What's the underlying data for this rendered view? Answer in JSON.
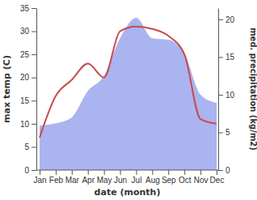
{
  "chart_data": {
    "type": "line",
    "x_label": "date (month)",
    "y_label": "max temp (C)",
    "y2_label": "med. precipitation (kg/m2)",
    "categories": [
      "Jan",
      "Feb",
      "Mar",
      "Apr",
      "May",
      "Jun",
      "Jul",
      "Aug",
      "Sep",
      "Oct",
      "Nov",
      "Dec"
    ],
    "series": [
      {
        "name": "med. precipitation",
        "type": "area",
        "axis": "y2",
        "color": "#aab4f0",
        "values": [
          5.9,
          6.2,
          7.0,
          10.5,
          12.5,
          17.5,
          20.2,
          17.5,
          17.3,
          15.5,
          10.0,
          8.9
        ]
      },
      {
        "name": "max temp",
        "type": "line",
        "color": "#c84b4b",
        "values": [
          7,
          16,
          19.5,
          23,
          20,
          30,
          31,
          30.5,
          29,
          25,
          11,
          10
        ]
      }
    ],
    "ylim": [
      0,
      35
    ],
    "yticks": [
      0,
      5,
      10,
      15,
      20,
      25,
      30,
      35
    ],
    "y2lim": [
      0,
      21.5
    ],
    "y2ticks": [
      0,
      5,
      10,
      15,
      20
    ],
    "grid": false
  }
}
